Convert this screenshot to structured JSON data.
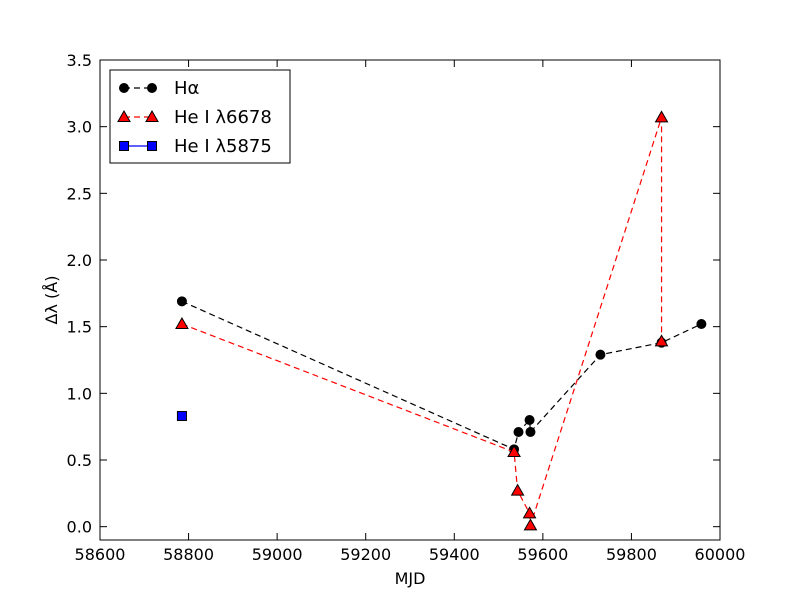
{
  "chart_data": {
    "type": "line",
    "title": "",
    "xlabel": "MJD",
    "ylabel": "Δλ (Å)",
    "xlim": [
      58600,
      60000
    ],
    "ylim": [
      -0.1,
      3.5
    ],
    "xticks": [
      58600,
      58800,
      59000,
      59200,
      59400,
      59600,
      59800,
      60000
    ],
    "xtick_labels": [
      "58600",
      "58800",
      "59000",
      "59200",
      "59400",
      "59600",
      "59800",
      "60000"
    ],
    "yticks": [
      0.0,
      0.5,
      1.0,
      1.5,
      2.0,
      2.5,
      3.0,
      3.5
    ],
    "ytick_labels": [
      "0.0",
      "0.5",
      "1.0",
      "1.5",
      "2.0",
      "2.5",
      "3.0",
      "3.5"
    ],
    "grid": false,
    "legend_position": "top-left",
    "series": [
      {
        "name": "Hα",
        "color": "#000000",
        "marker": "circle",
        "line_style": "dashed",
        "x": [
          58785,
          59535,
          59545,
          59570,
          59572,
          59730,
          59868,
          59958
        ],
        "y": [
          1.69,
          0.58,
          0.71,
          0.8,
          0.71,
          1.29,
          1.38,
          1.52
        ]
      },
      {
        "name": "He I λ6678",
        "color": "#ff0000",
        "marker": "triangle",
        "line_style": "dashed",
        "x": [
          58785,
          59535,
          59543,
          59570,
          59572,
          59868,
          59868
        ],
        "y": [
          1.52,
          0.56,
          0.27,
          0.1,
          0.01,
          3.07,
          1.39
        ]
      },
      {
        "name": "He I λ5875",
        "color": "#0000ff",
        "marker": "square",
        "line_style": "solid",
        "x": [
          58785
        ],
        "y": [
          0.83
        ]
      }
    ]
  }
}
